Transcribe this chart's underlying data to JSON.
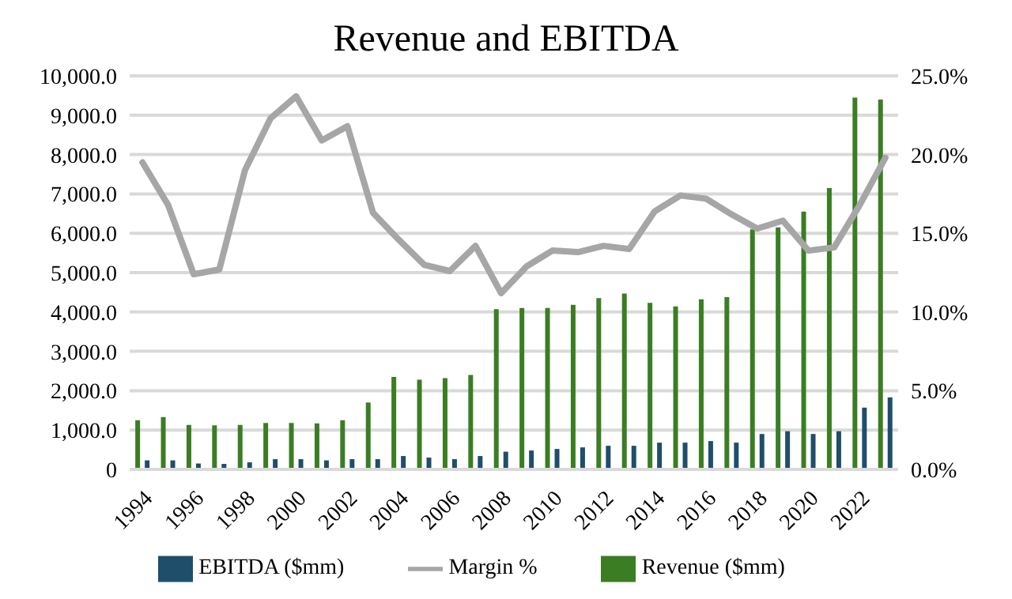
{
  "chart_data": {
    "type": "bar",
    "title": "Revenue and EBITDA",
    "categories": [
      "1994",
      null,
      "1996",
      null,
      "1998",
      null,
      "2000",
      null,
      "2002",
      null,
      "2004",
      null,
      "2006",
      null,
      "2008",
      null,
      "2010",
      null,
      "2012",
      null,
      "2014",
      null,
      "2016",
      null,
      "2018",
      null,
      "2020",
      null,
      "2022",
      null
    ],
    "series": [
      {
        "name": "Revenue ($mm)",
        "color": "#3b7d23",
        "values": [
          1250,
          1330,
          1130,
          1120,
          1130,
          1180,
          1180,
          1170,
          1250,
          1700,
          2350,
          2280,
          2320,
          2400,
          4070,
          4100,
          4100,
          4180,
          4350,
          4470,
          4230,
          4140,
          4320,
          4380,
          6100,
          6150,
          6550,
          7150,
          9450,
          9400
        ]
      },
      {
        "name": "EBITDA ($mm)",
        "color": "#1f4e6b",
        "values": [
          230,
          230,
          150,
          140,
          180,
          260,
          260,
          230,
          260,
          260,
          340,
          300,
          260,
          340,
          450,
          480,
          520,
          560,
          600,
          600,
          680,
          680,
          720,
          680,
          900,
          970,
          900,
          970,
          1570,
          1830
        ]
      },
      {
        "name": "Margin %",
        "type": "line",
        "axis": "y2",
        "color": "#a6a6a6",
        "values": [
          19.5,
          16.8,
          12.4,
          12.7,
          19.0,
          22.3,
          23.7,
          20.9,
          21.8,
          16.3,
          14.6,
          13.0,
          12.6,
          14.2,
          11.2,
          12.9,
          13.9,
          13.8,
          14.2,
          14.0,
          16.4,
          17.4,
          17.2,
          16.2,
          15.3,
          15.8,
          13.9,
          14.1,
          16.8,
          19.8
        ]
      }
    ],
    "ylim": [
      0,
      10000
    ],
    "yticks": [
      {
        "value": 0,
        "label": "0"
      },
      {
        "value": 1000,
        "label": "1,000.0"
      },
      {
        "value": 2000,
        "label": "2,000.0"
      },
      {
        "value": 3000,
        "label": "3,000.0"
      },
      {
        "value": 4000,
        "label": "4,000.0"
      },
      {
        "value": 5000,
        "label": "5,000.0"
      },
      {
        "value": 6000,
        "label": "6,000.0"
      },
      {
        "value": 7000,
        "label": "7,000.0"
      },
      {
        "value": 8000,
        "label": "8,000.0"
      },
      {
        "value": 9000,
        "label": "9,000.0"
      },
      {
        "value": 10000,
        "label": "10,000.0"
      }
    ],
    "y2lim": [
      0,
      25
    ],
    "y2ticks": [
      {
        "value": 0,
        "label": "0.0%"
      },
      {
        "value": 5,
        "label": "5.0%"
      },
      {
        "value": 10,
        "label": "10.0%"
      },
      {
        "value": 15,
        "label": "15.0%"
      },
      {
        "value": 20,
        "label": "20.0%"
      },
      {
        "value": 25,
        "label": "25.0%"
      }
    ],
    "grid": "y",
    "legend": "bottom",
    "marker": "none",
    "line_style": "solid"
  }
}
